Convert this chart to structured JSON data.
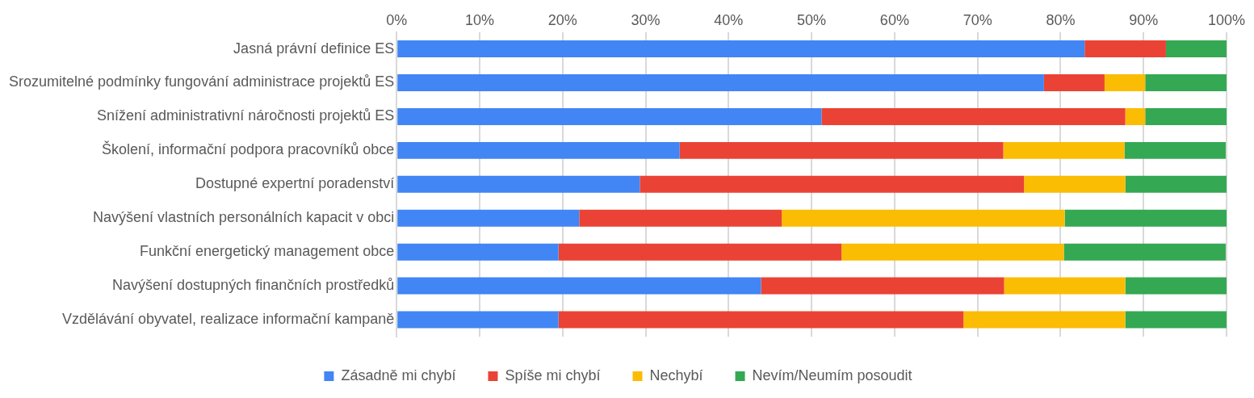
{
  "chart_data": {
    "type": "bar",
    "orientation": "horizontal",
    "stacked": true,
    "categories": [
      "Jasná právní definice ES",
      "Srozumitelné podmínky fungování administrace projektů ES",
      "Snížení administrativní náročnosti projektů ES",
      "Školení, informační podpora pracovníků obce",
      "Dostupné expertní poradenství",
      "Navýšení vlastních personálních kapacit v obci",
      "Funkční energetický management obce",
      "Navýšení dostupných finančních prostředků",
      "Vzdělávání obyvatel, realizace informační kampaně"
    ],
    "series": [
      {
        "name": "Zásadně mi chybí",
        "color": "#4285f4",
        "values": [
          82.9,
          78.0,
          51.2,
          34.1,
          29.3,
          22.0,
          19.5,
          43.9,
          19.5
        ]
      },
      {
        "name": "Spíše mi chybí",
        "color": "#ea4335",
        "values": [
          9.8,
          7.3,
          36.6,
          39.0,
          46.3,
          24.4,
          34.1,
          29.3,
          48.8
        ]
      },
      {
        "name": "Nechybí",
        "color": "#fbbc04",
        "values": [
          0,
          4.9,
          2.4,
          14.6,
          12.2,
          34.1,
          26.8,
          14.6,
          19.5
        ]
      },
      {
        "name": "Nevím/Neumím posoudit",
        "color": "#34a853",
        "values": [
          7.3,
          9.8,
          9.8,
          12.2,
          12.2,
          19.5,
          19.5,
          12.2,
          12.2
        ]
      }
    ],
    "xlim": [
      0,
      100
    ],
    "xticks": [
      {
        "value": 0,
        "label": "0%"
      },
      {
        "value": 10,
        "label": "10%"
      },
      {
        "value": 20,
        "label": "20%"
      },
      {
        "value": 30,
        "label": "30%"
      },
      {
        "value": 40,
        "label": "40%"
      },
      {
        "value": 50,
        "label": "50%"
      },
      {
        "value": 60,
        "label": "60%"
      },
      {
        "value": 70,
        "label": "70%"
      },
      {
        "value": 80,
        "label": "80%"
      },
      {
        "value": 90,
        "label": "90%"
      },
      {
        "value": 100,
        "label": "100%"
      }
    ],
    "grid": "x",
    "legend": "bottom"
  }
}
